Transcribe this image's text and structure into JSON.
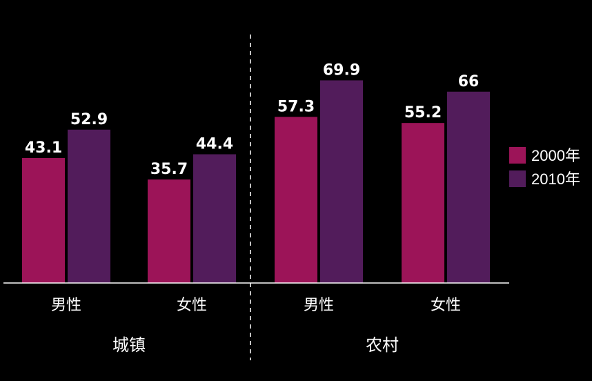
{
  "chart_data": {
    "type": "bar",
    "groups": [
      {
        "name": "城镇",
        "categories": [
          "男性",
          "女性"
        ]
      },
      {
        "name": "农村",
        "categories": [
          "男性",
          "女性"
        ]
      }
    ],
    "series": [
      {
        "name": "2000年",
        "color": "#9c1458",
        "values": [
          43.1,
          35.7,
          57.3,
          55.2
        ],
        "labels": [
          "43.1",
          "35.7",
          "57.3",
          "55.2"
        ]
      },
      {
        "name": "2010年",
        "color": "#521c5b",
        "values": [
          52.9,
          44.4,
          69.9,
          66
        ],
        "labels": [
          "52.9",
          "44.4",
          "69.9",
          "66"
        ]
      }
    ],
    "ylim": [
      0,
      75
    ],
    "legend_position": "right",
    "grid": false
  }
}
